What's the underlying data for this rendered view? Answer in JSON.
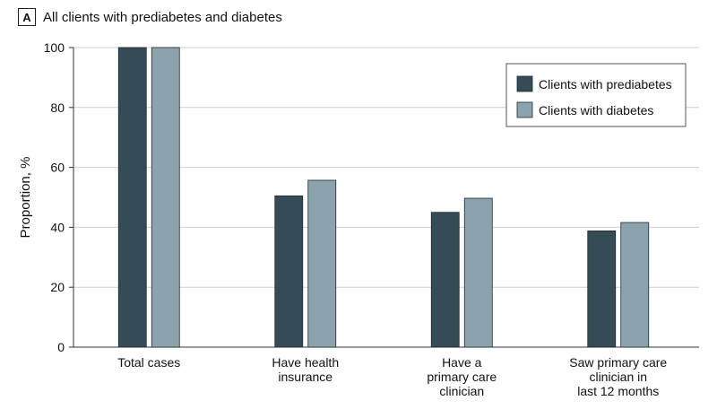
{
  "panel": {
    "letter": "A",
    "title": "All clients with prediabetes and diabetes"
  },
  "colors": {
    "prediabetes": "#354b55",
    "diabetes": "#8ca2ac",
    "grid": "#cfcfcf",
    "axis": "#333333"
  },
  "chart_data": {
    "type": "bar",
    "title": "All clients with prediabetes and diabetes",
    "xlabel": "",
    "ylabel": "Proportion, %",
    "ylim": [
      0,
      100
    ],
    "yticks": [
      0,
      20,
      40,
      60,
      80,
      100
    ],
    "grid": true,
    "legend_position": "top-right",
    "categories": [
      [
        "Total cases"
      ],
      [
        "Have health",
        "insurance"
      ],
      [
        "Have a",
        "primary care",
        "clinician"
      ],
      [
        "Saw primary care",
        "clinician in",
        "last 12 months"
      ]
    ],
    "series": [
      {
        "name": "Clients with prediabetes",
        "values": [
          100,
          50.5,
          45,
          38.8
        ]
      },
      {
        "name": "Clients with diabetes",
        "values": [
          100,
          55.7,
          49.7,
          41.6
        ]
      }
    ]
  }
}
